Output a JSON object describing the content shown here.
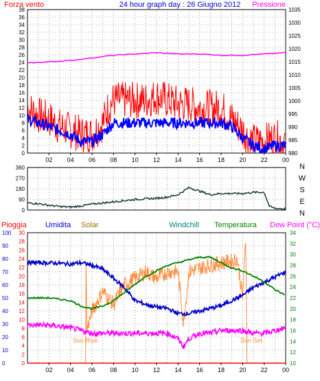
{
  "header": {
    "left_title": "Forza vento",
    "center_title": "24 hour graph day : 26 Giugno 2012",
    "right_title": "Pressione"
  },
  "colors": {
    "wind": "#ff0000",
    "wind_avg": "#0000ff",
    "pressure": "#ff00ff",
    "direction": "#1a3b3b",
    "rain": "#ff0000",
    "humidity": "#0000cc",
    "solar": "#ff8c3c",
    "windchill": "#008080",
    "temperature": "#008000",
    "dewpoint": "#ff00ff",
    "frame": "#000000",
    "grid": "#555555"
  },
  "legend": {
    "pioggia": "Pioggia",
    "umidita": "Umidita",
    "solar": "Solar",
    "windchill": "Windchill",
    "temperatura": "Temperatura",
    "dewpoint": "Dew Point (°C)"
  },
  "compass": [
    "N",
    "W",
    "S",
    "E",
    "N"
  ],
  "annotations": {
    "sunrise": "Sun Rise",
    "sunset": "Sun Set"
  },
  "chart_data": [
    {
      "type": "line",
      "x_ticks": [
        "02",
        "04",
        "06",
        "08",
        "10",
        "12",
        "14",
        "16",
        "18",
        "20",
        "22",
        "00"
      ],
      "y_left_label": "Forza vento",
      "y_left_ticks": [
        0,
        2,
        4,
        6,
        8,
        10,
        12,
        14,
        16,
        18,
        20,
        22,
        24,
        26,
        28,
        30,
        32,
        34,
        36,
        38
      ],
      "ylim_left": [
        0,
        38
      ],
      "y_right_label": "Pressione",
      "y_right_ticks": [
        980,
        985,
        990,
        995,
        1000,
        1005,
        1010,
        1015,
        1020,
        1025,
        1030,
        1035
      ],
      "ylim_right": [
        980,
        1035
      ],
      "series": [
        {
          "name": "Forza vento",
          "axis": "left",
          "x": [
            0,
            1,
            2,
            3,
            4,
            5,
            6,
            7,
            7.5,
            8,
            9,
            10,
            11,
            12,
            13,
            14,
            15,
            16,
            17,
            18,
            19,
            20,
            20.5,
            21,
            22,
            23,
            24
          ],
          "values": [
            12,
            10,
            9,
            7,
            6,
            5,
            5,
            8,
            12,
            14,
            14,
            14,
            14,
            15,
            14,
            13,
            13,
            12,
            12,
            12,
            9,
            6,
            4,
            3,
            3,
            4,
            3
          ]
        },
        {
          "x": [
            0,
            1,
            2,
            3,
            4,
            5,
            6,
            7,
            8,
            9,
            10,
            11,
            12,
            13,
            14,
            15,
            16,
            17,
            18,
            19,
            20,
            21,
            22,
            23,
            24
          ],
          "values": [
            9,
            8,
            7,
            6,
            5,
            3,
            3,
            5,
            8,
            8,
            8,
            8,
            8,
            8,
            8,
            8,
            8,
            8,
            8,
            7,
            4,
            2,
            1,
            2,
            2
          ]
        },
        {
          "name": "Pressione",
          "axis": "right",
          "x": [
            0,
            2,
            4,
            6,
            8,
            10,
            12,
            14,
            16,
            18,
            20,
            22,
            24
          ],
          "values": [
            1014.5,
            1015,
            1015.5,
            1016.5,
            1017.5,
            1018,
            1018.5,
            1018,
            1018,
            1017.5,
            1017.5,
            1018,
            1018.5
          ]
        }
      ]
    },
    {
      "type": "line",
      "x_ticks": [
        "02",
        "04",
        "06",
        "08",
        "10",
        "12",
        "14",
        "16",
        "18",
        "20",
        "22",
        "00"
      ],
      "y_ticks": [
        0,
        90,
        180,
        270,
        360
      ],
      "ylim": [
        0,
        360
      ],
      "series": [
        {
          "x": [
            0,
            1,
            2,
            3,
            4,
            5,
            6,
            7,
            8,
            9,
            10,
            11,
            12,
            13,
            14,
            15,
            16,
            17,
            18,
            19,
            20,
            21,
            22,
            22.5,
            23,
            24
          ],
          "values": [
            60,
            55,
            40,
            30,
            25,
            35,
            50,
            60,
            70,
            80,
            90,
            95,
            100,
            110,
            130,
            190,
            160,
            130,
            140,
            140,
            140,
            150,
            150,
            30,
            15,
            10
          ]
        }
      ]
    },
    {
      "type": "line",
      "x_ticks": [
        "02",
        "04",
        "06",
        "08",
        "10",
        "12",
        "14",
        "16",
        "18",
        "20",
        "22",
        "00"
      ],
      "y_ticks_humidity": [
        0,
        10,
        20,
        30,
        40,
        50,
        60,
        70,
        80,
        90,
        100
      ],
      "y_ticks_rain": [
        0,
        2,
        4,
        6,
        8,
        10,
        12,
        14,
        16,
        18,
        20,
        22,
        24,
        26,
        28,
        30
      ],
      "y_ticks_temperature": [
        10,
        12,
        14,
        16,
        18,
        20,
        22,
        24,
        26,
        28,
        30,
        32,
        34
      ],
      "ylim_humidity": [
        0,
        100
      ],
      "ylim_temperature": [
        10,
        34
      ],
      "series": [
        {
          "name": "Umidita",
          "axis": "humidity",
          "x": [
            0,
            2,
            4,
            5,
            6,
            7,
            8,
            9,
            10,
            11,
            12,
            13,
            14,
            15,
            16,
            17,
            18,
            19,
            20,
            21,
            22,
            23,
            24
          ],
          "values": [
            77,
            77,
            76,
            77,
            75,
            72,
            65,
            58,
            48,
            45,
            43,
            42,
            38,
            38,
            40,
            42,
            44,
            48,
            52,
            58,
            62,
            66,
            70
          ]
        },
        {
          "name": "Solar",
          "axis": "humidity",
          "x": [
            0,
            5.4,
            5.45,
            5.5,
            6,
            7,
            8,
            9,
            10,
            11,
            12,
            13,
            14,
            14.5,
            15,
            16,
            17,
            18,
            19,
            19.5,
            20,
            20.3,
            20.4,
            24
          ],
          "values": [
            0,
            0,
            98,
            25,
            40,
            55,
            45,
            60,
            65,
            70,
            65,
            70,
            70,
            30,
            70,
            73,
            75,
            77,
            78,
            80,
            50,
            98,
            0,
            0
          ]
        },
        {
          "name": "Temperatura",
          "axis": "temperature",
          "x": [
            0,
            2,
            4,
            5,
            6,
            7,
            8,
            9,
            10,
            11,
            12,
            13,
            14,
            15,
            16,
            17,
            18,
            19,
            20,
            21,
            22,
            23,
            24
          ],
          "values": [
            22,
            22,
            21.5,
            20.5,
            20,
            20.5,
            21.5,
            23,
            24.5,
            26,
            27,
            28,
            28.5,
            29,
            29.5,
            29.5,
            28.5,
            27.5,
            27,
            26,
            25,
            23.5,
            22.5
          ]
        },
        {
          "name": "Dew Point (°C)",
          "axis": "temperature",
          "x": [
            0,
            2,
            4,
            5,
            6,
            7,
            8,
            9,
            10,
            11,
            12,
            13,
            14,
            14.5,
            15,
            16,
            17,
            18,
            19,
            20,
            21,
            22,
            23,
            24
          ],
          "values": [
            17,
            17,
            16.5,
            16,
            15.5,
            15.5,
            15.5,
            15.5,
            15.5,
            15.5,
            15.5,
            15.5,
            14.5,
            13,
            14.5,
            15.5,
            15.5,
            16,
            16,
            16,
            15.5,
            15.5,
            16,
            16.5
          ]
        },
        {
          "name": "Pioggia",
          "axis": "rain",
          "x": [
            0,
            24
          ],
          "values": [
            0,
            0
          ]
        }
      ]
    }
  ]
}
